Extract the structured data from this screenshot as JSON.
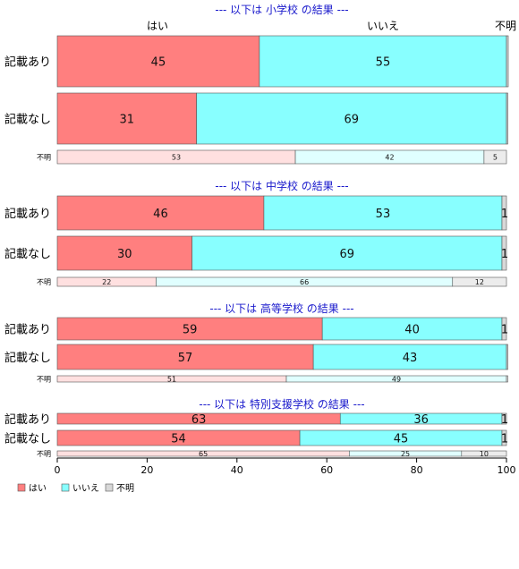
{
  "chart_data": {
    "type": "bar",
    "orientation": "horizontal",
    "stacked": true,
    "xlim": [
      0,
      100
    ],
    "xticks": [
      0,
      20,
      40,
      60,
      80,
      100
    ],
    "column_headers": [
      "はい",
      "いいえ",
      "不明"
    ],
    "legend": {
      "position": "bottom-left",
      "entries": [
        "はい",
        "いいえ",
        "不明"
      ]
    },
    "colors": {
      "はい": "#ff7f7f",
      "いいえ": "#88ffff",
      "不明": "#d8d8d8",
      "はい_light": "#ffe0e0",
      "いいえ_light": "#e0ffff",
      "不明_light": "#ececec"
    },
    "groups": [
      {
        "title": "--- 以下は 小学校 の結果 ---",
        "rows": [
          {
            "label": "記載あり",
            "values": [
              45,
              55,
              0.4
            ],
            "labels": [
              "45",
              "55",
              ""
            ]
          },
          {
            "label": "記載なし",
            "values": [
              31,
              69,
              0.3
            ],
            "labels": [
              "31",
              "69",
              ""
            ]
          },
          {
            "label": "不明",
            "values": [
              53,
              42,
              5
            ],
            "labels": [
              "53",
              "42",
              "5"
            ],
            "minor": true
          }
        ]
      },
      {
        "title": "--- 以下は 中学校 の結果 ---",
        "rows": [
          {
            "label": "記載あり",
            "values": [
              46,
              53,
              1
            ],
            "labels": [
              "46",
              "53",
              "1"
            ]
          },
          {
            "label": "記載なし",
            "values": [
              30,
              69,
              1
            ],
            "labels": [
              "30",
              "69",
              "1"
            ]
          },
          {
            "label": "不明",
            "values": [
              22,
              66,
              12
            ],
            "labels": [
              "22",
              "66",
              "12"
            ],
            "minor": true
          }
        ]
      },
      {
        "title": "--- 以下は 高等学校 の結果 ---",
        "rows": [
          {
            "label": "記載あり",
            "values": [
              59,
              40,
              1
            ],
            "labels": [
              "59",
              "40",
              "1"
            ]
          },
          {
            "label": "記載なし",
            "values": [
              57,
              43,
              0.3
            ],
            "labels": [
              "57",
              "43",
              ""
            ]
          },
          {
            "label": "不明",
            "values": [
              51,
              49,
              0.3
            ],
            "labels": [
              "51",
              "49",
              ""
            ],
            "minor": true
          }
        ]
      },
      {
        "title": "--- 以下は 特別支援学校 の結果 ---",
        "rows": [
          {
            "label": "記載あり",
            "values": [
              63,
              36,
              1
            ],
            "labels": [
              "63",
              "36",
              "1"
            ]
          },
          {
            "label": "記載なし",
            "values": [
              54,
              45,
              1
            ],
            "labels": [
              "54",
              "45",
              "1"
            ]
          },
          {
            "label": "不明",
            "values": [
              65,
              25,
              10
            ],
            "labels": [
              "65",
              "25",
              "10"
            ],
            "minor": true
          }
        ]
      }
    ]
  }
}
